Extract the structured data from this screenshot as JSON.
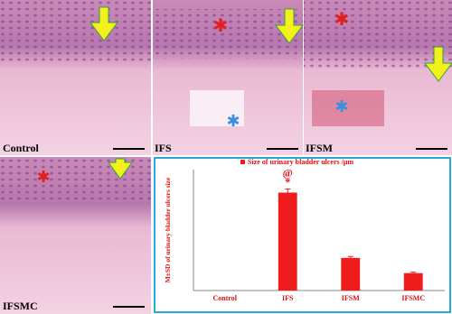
{
  "panels": [
    {
      "label": "Control"
    },
    {
      "label": "IFS"
    },
    {
      "label": "IFSM"
    },
    {
      "label": "IFSMC"
    }
  ],
  "chart_data": {
    "type": "bar",
    "legend": "Size of urinary bladder ulcers /μm",
    "y_label": "M±SD of urinary bladder ulcers size",
    "categories": [
      "Control",
      "IFS",
      "IFSM",
      "IFSMC"
    ],
    "values": [
      0,
      405,
      135,
      72
    ],
    "errors": [
      0,
      15,
      6,
      4
    ],
    "color": "#ee1c1c",
    "ylim": [
      0,
      500
    ],
    "annotations": [
      {
        "category": 1,
        "text": "@"
      },
      {
        "category": 1,
        "text": "*"
      }
    ]
  }
}
